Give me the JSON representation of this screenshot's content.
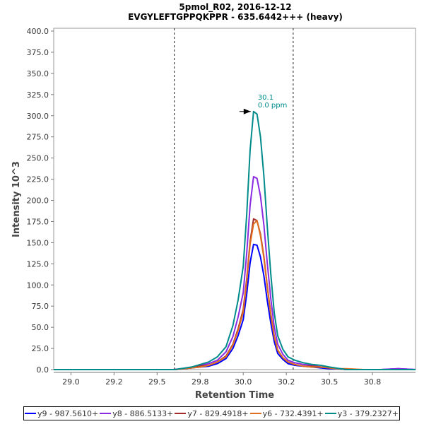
{
  "chart_data": {
    "type": "line",
    "title": "5pmol_R02, 2016-12-12",
    "subtitle": "EVGYLEFTGPPQKPPR - 635.6442+++ (heavy)",
    "xlabel": "Retention Time",
    "ylabel": "Intensity 10^3",
    "xlim": [
      28.9,
      31.0
    ],
    "ylim": [
      0,
      400
    ],
    "x_ticks": [
      29.0,
      29.25,
      29.5,
      29.75,
      30.0,
      30.25,
      30.5,
      30.75
    ],
    "x_tick_labels": [
      "29.0",
      "29.2",
      "29.5",
      "29.8",
      "30.0",
      "30.2",
      "30.5",
      "30.8"
    ],
    "y_ticks": [
      0,
      25,
      50,
      75,
      100,
      125,
      150,
      175,
      200,
      225,
      250,
      275,
      300,
      325,
      350,
      375,
      400
    ],
    "y_tick_labels": [
      "0.0",
      "25.0",
      "50.0",
      "75.0",
      "100.0",
      "125.0",
      "150.0",
      "175.0",
      "200.0",
      "225.0",
      "250.0",
      "275.0",
      "300.0",
      "325.0",
      "350.0",
      "375.0",
      "400.0"
    ],
    "integration_boundaries": [
      29.6,
      30.29
    ],
    "annotation": {
      "x": 30.06,
      "y": 305,
      "line1": "30.1",
      "line2": "0.0 ppm",
      "color": "#008b8b"
    },
    "legend_position": "bottom",
    "x": [
      28.9,
      29.6,
      29.65,
      29.7,
      29.75,
      29.8,
      29.85,
      29.9,
      29.94,
      29.97,
      30.0,
      30.02,
      30.04,
      30.06,
      30.08,
      30.1,
      30.12,
      30.14,
      30.16,
      30.18,
      30.2,
      30.23,
      30.26,
      30.3,
      30.35,
      30.4,
      30.45,
      30.5,
      30.55,
      30.6,
      30.7,
      30.8,
      30.9,
      31.0
    ],
    "series": [
      {
        "name": "y9 - 987.5610+",
        "color": "#0000ff",
        "values": [
          0,
          0,
          1,
          2,
          3,
          4,
          7,
          13,
          25,
          40,
          59,
          89,
          126,
          148,
          147,
          133,
          111,
          81,
          55,
          33,
          19,
          12,
          7,
          5,
          4,
          3,
          2,
          1,
          1,
          0,
          0,
          0,
          1,
          0
        ]
      },
      {
        "name": "y8 - 886.5133+",
        "color": "#8a2be2",
        "values": [
          0,
          0,
          1,
          2,
          5,
          7,
          11,
          21,
          39,
          62,
          91,
          137,
          194,
          228,
          226,
          205,
          171,
          125,
          84,
          50,
          30,
          18,
          11,
          8,
          6,
          5,
          3,
          2,
          1,
          0,
          0,
          0,
          1,
          0
        ]
      },
      {
        "name": "y7 - 829.4918+",
        "color": "#a52a2a",
        "values": [
          0,
          0,
          1,
          2,
          4,
          5,
          9,
          16,
          30,
          48,
          71,
          107,
          151,
          178,
          176,
          160,
          134,
          98,
          66,
          39,
          23,
          14,
          9,
          6,
          4,
          4,
          3,
          2,
          1,
          0,
          0,
          0,
          0,
          0
        ]
      },
      {
        "name": "y6 - 732.4391+",
        "color": "#e07020",
        "values": [
          0,
          0,
          1,
          2,
          3,
          5,
          9,
          15,
          29,
          46,
          68,
          104,
          148,
          172,
          176,
          158,
          132,
          97,
          65,
          39,
          23,
          14,
          9,
          6,
          4,
          3,
          3,
          2,
          1,
          1,
          0,
          0,
          0,
          0
        ]
      },
      {
        "name": "y3 - 379.2327+",
        "color": "#008b8b",
        "values": [
          0,
          0,
          1.5,
          3,
          6,
          9,
          15,
          27,
          52,
          82,
          122,
          183,
          259,
          305,
          302,
          275,
          229,
          168,
          113,
          67,
          40,
          24,
          15,
          11,
          8,
          6,
          5,
          3,
          1.5,
          0,
          0,
          0,
          0,
          0
        ]
      }
    ]
  }
}
